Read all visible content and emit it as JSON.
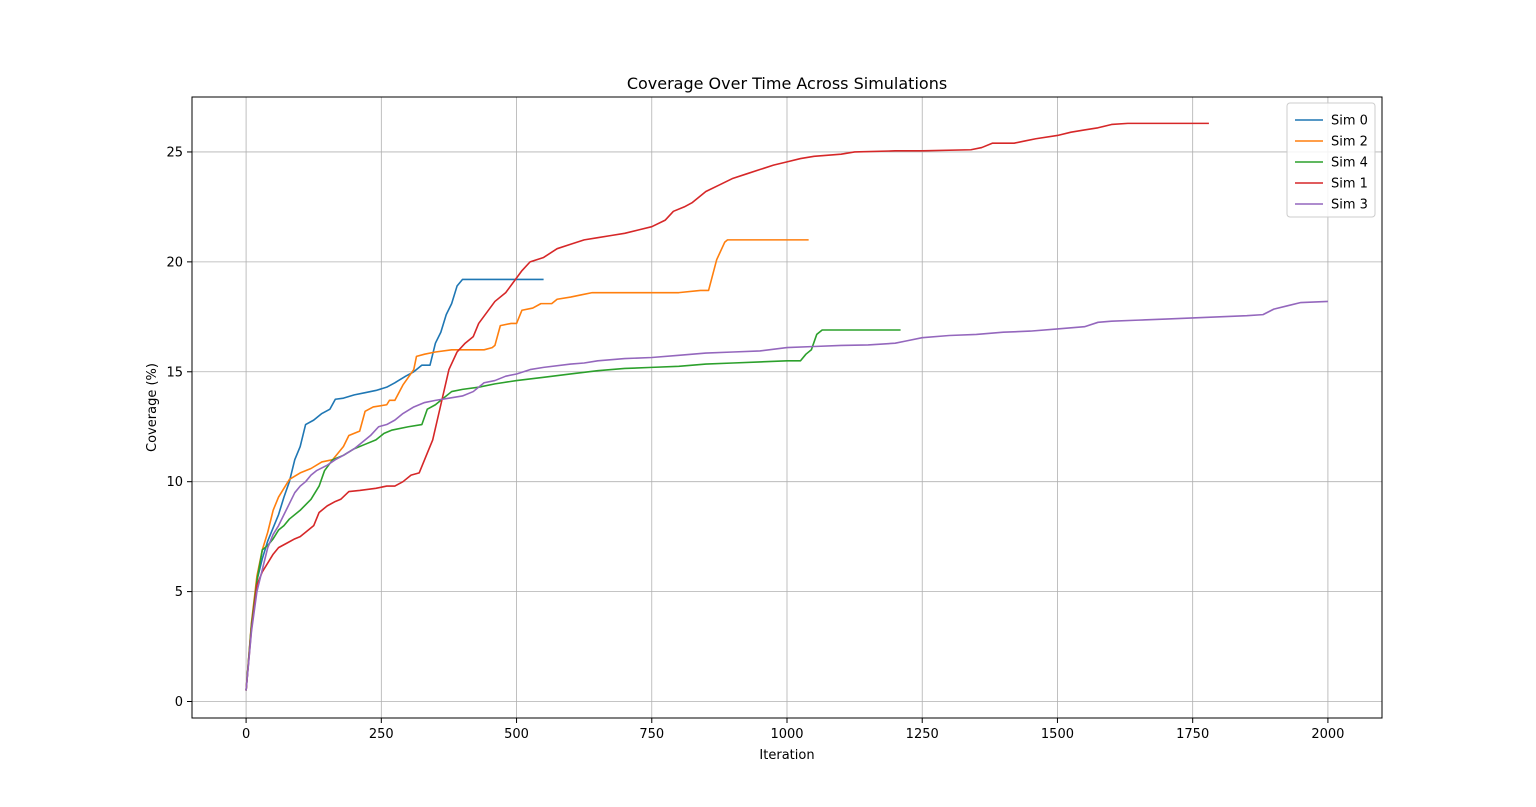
{
  "chart_data": {
    "type": "line",
    "title": "Coverage Over Time Across Simulations",
    "xlabel": "Iteration",
    "ylabel": "Coverage (%)",
    "xlim": [
      -100,
      2100
    ],
    "ylim": [
      -0.75,
      27.5
    ],
    "xticks": [
      0,
      250,
      500,
      750,
      1000,
      1250,
      1500,
      1750,
      2000
    ],
    "yticks": [
      0,
      5,
      10,
      15,
      20,
      25
    ],
    "grid": true,
    "legend": "top-right",
    "series": [
      {
        "name": "Sim 0",
        "color": "#1f77b4",
        "points": [
          [
            0,
            0.5
          ],
          [
            10,
            3.5
          ],
          [
            20,
            5.5
          ],
          [
            30,
            6.5
          ],
          [
            40,
            7.3
          ],
          [
            50,
            7.9
          ],
          [
            60,
            8.5
          ],
          [
            70,
            9.3
          ],
          [
            80,
            10.0
          ],
          [
            90,
            11.0
          ],
          [
            100,
            11.6
          ],
          [
            110,
            12.6
          ],
          [
            125,
            12.8
          ],
          [
            140,
            13.1
          ],
          [
            155,
            13.3
          ],
          [
            165,
            13.75
          ],
          [
            180,
            13.8
          ],
          [
            200,
            13.95
          ],
          [
            220,
            14.05
          ],
          [
            240,
            14.15
          ],
          [
            260,
            14.3
          ],
          [
            275,
            14.5
          ],
          [
            295,
            14.8
          ],
          [
            310,
            15.0
          ],
          [
            325,
            15.3
          ],
          [
            340,
            15.3
          ],
          [
            350,
            16.3
          ],
          [
            360,
            16.8
          ],
          [
            370,
            17.6
          ],
          [
            380,
            18.1
          ],
          [
            390,
            18.9
          ],
          [
            400,
            19.2
          ],
          [
            450,
            19.2
          ],
          [
            500,
            19.2
          ],
          [
            550,
            19.2
          ]
        ]
      },
      {
        "name": "Sim 2",
        "color": "#ff7f0e",
        "points": [
          [
            0,
            0.5
          ],
          [
            10,
            3.6
          ],
          [
            20,
            5.7
          ],
          [
            30,
            6.9
          ],
          [
            40,
            7.7
          ],
          [
            50,
            8.7
          ],
          [
            60,
            9.3
          ],
          [
            70,
            9.7
          ],
          [
            80,
            10.1
          ],
          [
            100,
            10.4
          ],
          [
            120,
            10.6
          ],
          [
            140,
            10.9
          ],
          [
            160,
            11.0
          ],
          [
            170,
            11.3
          ],
          [
            180,
            11.6
          ],
          [
            190,
            12.1
          ],
          [
            210,
            12.3
          ],
          [
            220,
            13.2
          ],
          [
            235,
            13.4
          ],
          [
            260,
            13.5
          ],
          [
            265,
            13.7
          ],
          [
            275,
            13.7
          ],
          [
            290,
            14.4
          ],
          [
            310,
            15.1
          ],
          [
            315,
            15.7
          ],
          [
            330,
            15.8
          ],
          [
            350,
            15.9
          ],
          [
            380,
            16.0
          ],
          [
            440,
            16.0
          ],
          [
            455,
            16.1
          ],
          [
            460,
            16.2
          ],
          [
            470,
            17.1
          ],
          [
            490,
            17.2
          ],
          [
            500,
            17.2
          ],
          [
            510,
            17.8
          ],
          [
            530,
            17.9
          ],
          [
            545,
            18.1
          ],
          [
            565,
            18.1
          ],
          [
            575,
            18.3
          ],
          [
            600,
            18.4
          ],
          [
            620,
            18.5
          ],
          [
            640,
            18.6
          ],
          [
            700,
            18.6
          ],
          [
            800,
            18.6
          ],
          [
            840,
            18.7
          ],
          [
            855,
            18.7
          ],
          [
            870,
            20.1
          ],
          [
            885,
            20.9
          ],
          [
            890,
            21.0
          ],
          [
            950,
            21.0
          ],
          [
            1000,
            21.0
          ],
          [
            1040,
            21.0
          ]
        ]
      },
      {
        "name": "Sim 4",
        "color": "#2ca02c",
        "points": [
          [
            0,
            0.5
          ],
          [
            10,
            3.5
          ],
          [
            20,
            5.5
          ],
          [
            30,
            6.9
          ],
          [
            40,
            7.1
          ],
          [
            50,
            7.4
          ],
          [
            60,
            7.8
          ],
          [
            70,
            8.0
          ],
          [
            80,
            8.3
          ],
          [
            100,
            8.7
          ],
          [
            120,
            9.2
          ],
          [
            135,
            9.8
          ],
          [
            145,
            10.5
          ],
          [
            160,
            11.0
          ],
          [
            180,
            11.2
          ],
          [
            200,
            11.5
          ],
          [
            220,
            11.7
          ],
          [
            240,
            11.9
          ],
          [
            255,
            12.2
          ],
          [
            270,
            12.35
          ],
          [
            300,
            12.5
          ],
          [
            325,
            12.6
          ],
          [
            335,
            13.3
          ],
          [
            350,
            13.5
          ],
          [
            365,
            13.8
          ],
          [
            380,
            14.1
          ],
          [
            400,
            14.2
          ],
          [
            430,
            14.3
          ],
          [
            460,
            14.45
          ],
          [
            500,
            14.6
          ],
          [
            550,
            14.75
          ],
          [
            600,
            14.9
          ],
          [
            650,
            15.05
          ],
          [
            700,
            15.15
          ],
          [
            750,
            15.2
          ],
          [
            800,
            15.25
          ],
          [
            850,
            15.35
          ],
          [
            900,
            15.4
          ],
          [
            950,
            15.45
          ],
          [
            1000,
            15.5
          ],
          [
            1025,
            15.5
          ],
          [
            1035,
            15.8
          ],
          [
            1045,
            16.0
          ],
          [
            1055,
            16.7
          ],
          [
            1065,
            16.9
          ],
          [
            1100,
            16.9
          ],
          [
            1150,
            16.9
          ],
          [
            1210,
            16.9
          ]
        ]
      },
      {
        "name": "Sim 1",
        "color": "#d62728",
        "points": [
          [
            0,
            0.5
          ],
          [
            10,
            3.3
          ],
          [
            20,
            5.3
          ],
          [
            30,
            5.9
          ],
          [
            40,
            6.3
          ],
          [
            50,
            6.7
          ],
          [
            60,
            7.0
          ],
          [
            75,
            7.2
          ],
          [
            90,
            7.4
          ],
          [
            100,
            7.5
          ],
          [
            110,
            7.7
          ],
          [
            125,
            8.0
          ],
          [
            135,
            8.6
          ],
          [
            150,
            8.9
          ],
          [
            165,
            9.1
          ],
          [
            175,
            9.2
          ],
          [
            190,
            9.55
          ],
          [
            210,
            9.6
          ],
          [
            240,
            9.7
          ],
          [
            260,
            9.8
          ],
          [
            275,
            9.8
          ],
          [
            290,
            10.0
          ],
          [
            305,
            10.3
          ],
          [
            320,
            10.4
          ],
          [
            335,
            11.3
          ],
          [
            345,
            11.9
          ],
          [
            360,
            13.5
          ],
          [
            375,
            15.1
          ],
          [
            390,
            15.9
          ],
          [
            405,
            16.3
          ],
          [
            420,
            16.6
          ],
          [
            430,
            17.2
          ],
          [
            445,
            17.7
          ],
          [
            460,
            18.2
          ],
          [
            480,
            18.6
          ],
          [
            495,
            19.1
          ],
          [
            510,
            19.6
          ],
          [
            525,
            20.0
          ],
          [
            550,
            20.2
          ],
          [
            575,
            20.6
          ],
          [
            600,
            20.8
          ],
          [
            625,
            21.0
          ],
          [
            650,
            21.1
          ],
          [
            675,
            21.2
          ],
          [
            700,
            21.3
          ],
          [
            725,
            21.45
          ],
          [
            750,
            21.6
          ],
          [
            775,
            21.9
          ],
          [
            790,
            22.3
          ],
          [
            810,
            22.5
          ],
          [
            825,
            22.7
          ],
          [
            850,
            23.2
          ],
          [
            875,
            23.5
          ],
          [
            900,
            23.8
          ],
          [
            925,
            24.0
          ],
          [
            950,
            24.2
          ],
          [
            975,
            24.4
          ],
          [
            1000,
            24.55
          ],
          [
            1025,
            24.7
          ],
          [
            1050,
            24.8
          ],
          [
            1100,
            24.9
          ],
          [
            1125,
            25.0
          ],
          [
            1200,
            25.05
          ],
          [
            1250,
            25.05
          ],
          [
            1340,
            25.1
          ],
          [
            1360,
            25.2
          ],
          [
            1380,
            25.4
          ],
          [
            1420,
            25.4
          ],
          [
            1440,
            25.5
          ],
          [
            1460,
            25.6
          ],
          [
            1500,
            25.75
          ],
          [
            1525,
            25.9
          ],
          [
            1550,
            26.0
          ],
          [
            1575,
            26.1
          ],
          [
            1600,
            26.25
          ],
          [
            1630,
            26.3
          ],
          [
            1700,
            26.3
          ],
          [
            1780,
            26.3
          ]
        ]
      },
      {
        "name": "Sim 3",
        "color": "#9467bd",
        "points": [
          [
            0,
            0.5
          ],
          [
            10,
            3.2
          ],
          [
            20,
            5.0
          ],
          [
            30,
            6.0
          ],
          [
            40,
            7.0
          ],
          [
            50,
            7.6
          ],
          [
            60,
            8.0
          ],
          [
            70,
            8.5
          ],
          [
            80,
            9.0
          ],
          [
            90,
            9.5
          ],
          [
            100,
            9.8
          ],
          [
            110,
            10.0
          ],
          [
            120,
            10.3
          ],
          [
            130,
            10.5
          ],
          [
            150,
            10.75
          ],
          [
            165,
            11.0
          ],
          [
            180,
            11.2
          ],
          [
            200,
            11.5
          ],
          [
            215,
            11.8
          ],
          [
            230,
            12.1
          ],
          [
            245,
            12.5
          ],
          [
            260,
            12.6
          ],
          [
            275,
            12.8
          ],
          [
            290,
            13.1
          ],
          [
            310,
            13.4
          ],
          [
            330,
            13.6
          ],
          [
            350,
            13.7
          ],
          [
            375,
            13.8
          ],
          [
            400,
            13.9
          ],
          [
            420,
            14.1
          ],
          [
            440,
            14.5
          ],
          [
            460,
            14.6
          ],
          [
            480,
            14.8
          ],
          [
            500,
            14.9
          ],
          [
            525,
            15.1
          ],
          [
            550,
            15.2
          ],
          [
            600,
            15.35
          ],
          [
            625,
            15.4
          ],
          [
            650,
            15.5
          ],
          [
            700,
            15.6
          ],
          [
            750,
            15.65
          ],
          [
            800,
            15.75
          ],
          [
            850,
            15.85
          ],
          [
            900,
            15.9
          ],
          [
            950,
            15.95
          ],
          [
            1000,
            16.1
          ],
          [
            1050,
            16.15
          ],
          [
            1100,
            16.2
          ],
          [
            1150,
            16.22
          ],
          [
            1200,
            16.3
          ],
          [
            1220,
            16.4
          ],
          [
            1250,
            16.55
          ],
          [
            1300,
            16.65
          ],
          [
            1350,
            16.7
          ],
          [
            1400,
            16.8
          ],
          [
            1450,
            16.85
          ],
          [
            1500,
            16.95
          ],
          [
            1550,
            17.05
          ],
          [
            1575,
            17.25
          ],
          [
            1600,
            17.3
          ],
          [
            1650,
            17.35
          ],
          [
            1700,
            17.4
          ],
          [
            1750,
            17.45
          ],
          [
            1800,
            17.5
          ],
          [
            1850,
            17.55
          ],
          [
            1880,
            17.6
          ],
          [
            1900,
            17.85
          ],
          [
            1925,
            18.0
          ],
          [
            1950,
            18.15
          ],
          [
            2000,
            18.2
          ]
        ]
      }
    ]
  }
}
